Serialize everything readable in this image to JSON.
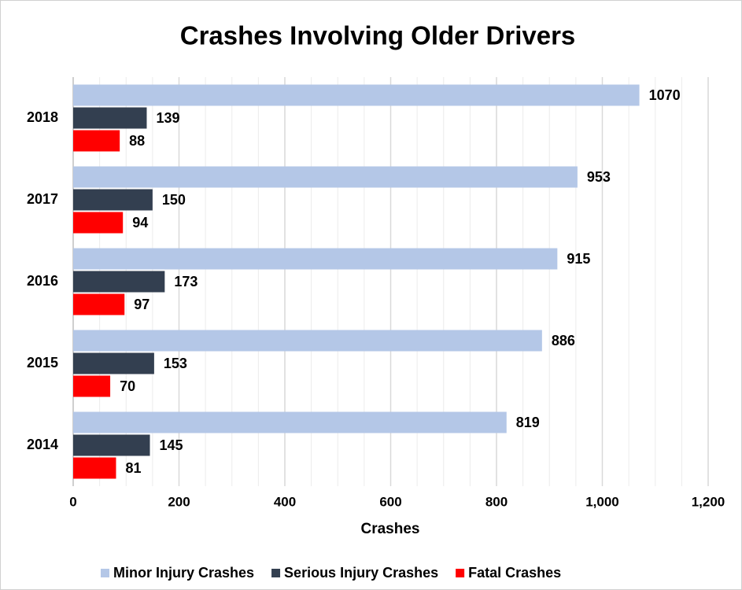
{
  "chart_data": {
    "type": "hbar",
    "title": "Crashes Involving Older Drivers",
    "x_label": "Crashes",
    "categories": [
      "2018",
      "2017",
      "2016",
      "2015",
      "2014"
    ],
    "series": [
      {
        "name": "Minor Injury Crashes",
        "color": "#b4c7e7",
        "values": [
          1070,
          953,
          915,
          886,
          819
        ]
      },
      {
        "name": "Serious Injury Crashes",
        "color": "#333f50",
        "values": [
          139,
          150,
          173,
          153,
          145
        ]
      },
      {
        "name": "Fatal Crashes",
        "color": "#ff0000",
        "values": [
          88,
          94,
          97,
          70,
          81
        ]
      }
    ],
    "xlim": [
      0,
      1200
    ],
    "xticks": [
      0,
      200,
      400,
      600,
      800,
      {
        "value": 1000,
        "label": "1,000"
      },
      {
        "value": 1200,
        "label": "1,200"
      }
    ],
    "x_minor_ticks": [
      50,
      100,
      150,
      250,
      300,
      350,
      450,
      500,
      550,
      650,
      700,
      750,
      850,
      900,
      950,
      1050,
      1100,
      1150
    ],
    "grid": true,
    "legend": "bottom"
  }
}
